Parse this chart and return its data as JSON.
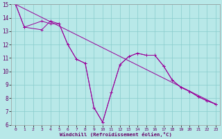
{
  "bg_color": "#b8e8e8",
  "grid_color": "#88cccc",
  "line_color": "#990099",
  "xlim": [
    -0.5,
    23.5
  ],
  "ylim": [
    6,
    15
  ],
  "xticks": [
    0,
    1,
    2,
    3,
    4,
    5,
    6,
    7,
    8,
    9,
    10,
    11,
    12,
    13,
    14,
    15,
    16,
    17,
    18,
    19,
    20,
    21,
    22,
    23
  ],
  "yticks": [
    6,
    7,
    8,
    9,
    10,
    11,
    12,
    13,
    14,
    15
  ],
  "xlabel": "Windchill (Refroidissement éolien,°C)",
  "curve1_x": [
    0,
    1,
    3,
    4,
    5,
    6,
    7,
    8,
    9,
    10,
    11,
    12,
    13,
    14,
    15,
    16,
    17,
    18,
    19,
    20,
    21,
    22,
    23
  ],
  "curve1_y": [
    15,
    13.3,
    13.1,
    13.75,
    13.55,
    12.0,
    10.9,
    10.6,
    7.3,
    6.2,
    8.4,
    10.5,
    11.1,
    11.35,
    11.2,
    11.2,
    10.4,
    9.35,
    8.8,
    8.5,
    8.1,
    7.8,
    7.55
  ],
  "curve2_x": [
    0,
    1,
    3,
    4,
    5,
    6,
    7,
    8,
    9,
    10,
    11,
    12,
    13,
    14,
    15,
    16,
    17,
    18,
    19,
    20,
    21,
    22,
    23
  ],
  "curve2_y": [
    15,
    13.3,
    13.75,
    13.55,
    13.55,
    12.0,
    10.9,
    10.6,
    7.3,
    6.2,
    8.4,
    10.5,
    11.1,
    11.35,
    11.2,
    11.2,
    10.4,
    9.35,
    8.8,
    8.5,
    8.1,
    7.8,
    7.55
  ],
  "curve3_x": [
    0,
    23
  ],
  "curve3_y": [
    15,
    7.55
  ]
}
